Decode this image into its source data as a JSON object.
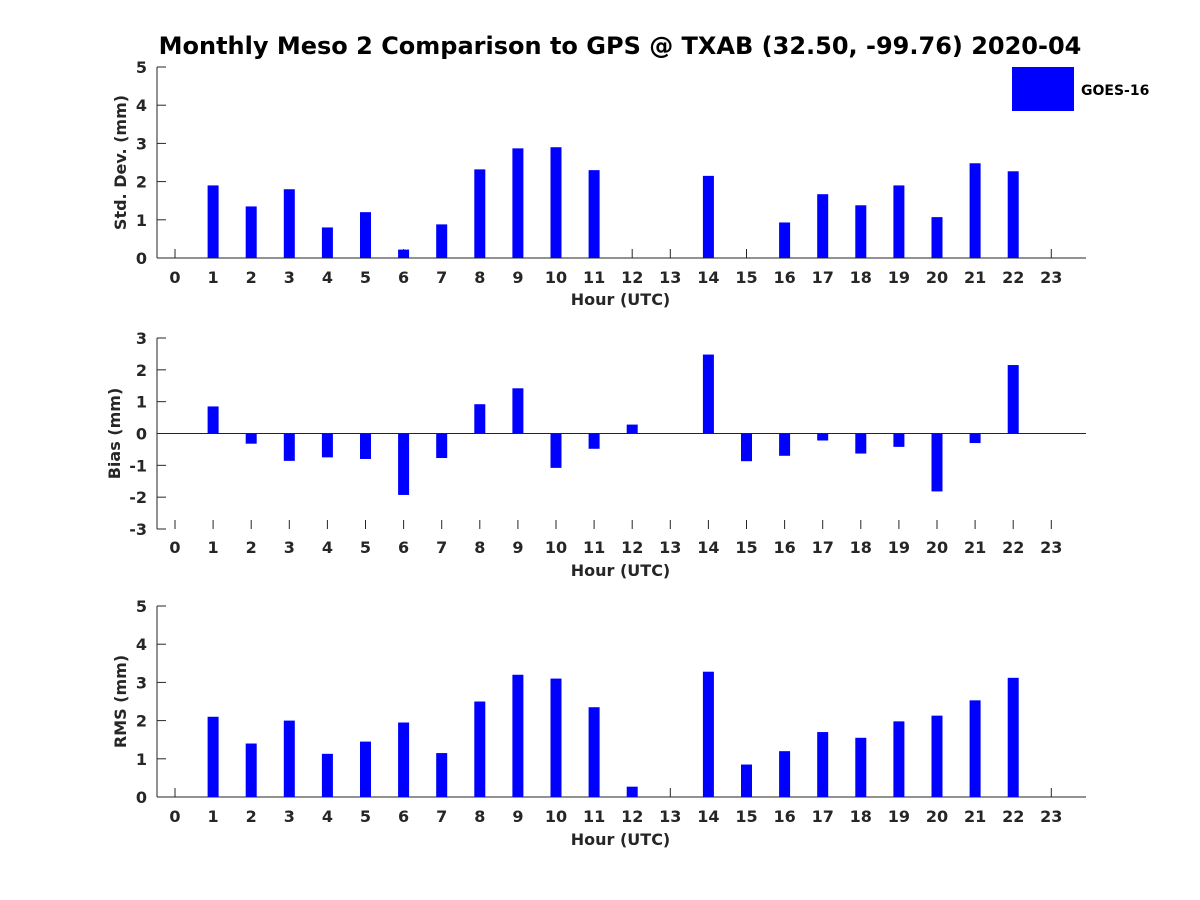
{
  "chart_data": {
    "title": "Monthly Meso 2 Comparison to GPS @ TXAB (32.50, -99.76) 2020-04",
    "legend": {
      "label": "GOES-16",
      "color": "#0000ff",
      "placement": "top-right"
    },
    "subplots": [
      {
        "type": "bar",
        "xlabel": "Hour (UTC)",
        "ylabel": "Std. Dev. (mm)",
        "ylim": [
          0,
          5
        ],
        "yticks": [
          "0",
          "1",
          "2",
          "3",
          "4",
          "5"
        ],
        "x": [
          "0",
          "1",
          "2",
          "3",
          "4",
          "5",
          "6",
          "7",
          "8",
          "9",
          "10",
          "11",
          "12",
          "13",
          "14",
          "15",
          "16",
          "17",
          "18",
          "19",
          "20",
          "21",
          "22",
          "23"
        ],
        "values": [
          null,
          1.9,
          1.35,
          1.8,
          0.8,
          1.2,
          0.22,
          0.88,
          2.32,
          2.87,
          2.9,
          2.3,
          null,
          null,
          2.15,
          null,
          0.93,
          1.67,
          1.38,
          1.9,
          1.07,
          2.48,
          2.27,
          null
        ]
      },
      {
        "type": "bar",
        "xlabel": "Hour (UTC)",
        "ylabel": "Bias (mm)",
        "ylim": [
          -3,
          3
        ],
        "yticks": [
          "-3",
          "-2",
          "-1",
          "0",
          "1",
          "2",
          "3"
        ],
        "x": [
          "0",
          "1",
          "2",
          "3",
          "4",
          "5",
          "6",
          "7",
          "8",
          "9",
          "10",
          "11",
          "12",
          "13",
          "14",
          "15",
          "16",
          "17",
          "18",
          "19",
          "20",
          "21",
          "22",
          "23"
        ],
        "values": [
          null,
          0.85,
          -0.32,
          -0.86,
          -0.75,
          -0.8,
          -1.93,
          -0.77,
          0.92,
          1.42,
          -1.08,
          -0.48,
          0.28,
          null,
          2.48,
          -0.87,
          -0.7,
          -0.22,
          -0.63,
          -0.42,
          -1.82,
          -0.3,
          2.15,
          null
        ]
      },
      {
        "type": "bar",
        "xlabel": "Hour (UTC)",
        "ylabel": "RMS (mm)",
        "ylim": [
          0,
          5
        ],
        "yticks": [
          "0",
          "1",
          "2",
          "3",
          "4",
          "5"
        ],
        "x": [
          "0",
          "1",
          "2",
          "3",
          "4",
          "5",
          "6",
          "7",
          "8",
          "9",
          "10",
          "11",
          "12",
          "13",
          "14",
          "15",
          "16",
          "17",
          "18",
          "19",
          "20",
          "21",
          "22",
          "23"
        ],
        "values": [
          null,
          2.1,
          1.4,
          2.0,
          1.13,
          1.45,
          1.95,
          1.15,
          2.5,
          3.2,
          3.1,
          2.35,
          0.27,
          null,
          3.28,
          0.85,
          1.2,
          1.7,
          1.55,
          1.98,
          2.13,
          2.53,
          3.12,
          null
        ]
      }
    ]
  }
}
